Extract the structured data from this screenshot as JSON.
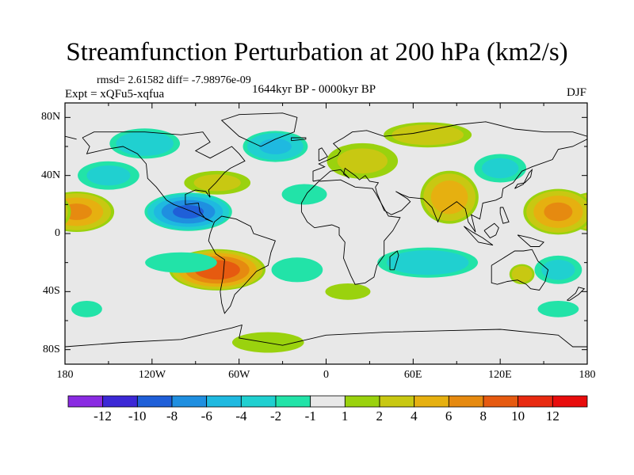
{
  "chart_data": {
    "type": "heatmap",
    "title": "Streamfunction Perturbation at 200 hPa (km2/s)",
    "stats": "rmsd= 2.61582 diff= -7.98976e-09",
    "experiment": "Expt = xQFu5-xqfua",
    "period": "1644kyr BP - 0000kyr BP",
    "season": "DJF",
    "x_ticks": [
      "180",
      "120W",
      "60W",
      "0",
      "60E",
      "120E",
      "180"
    ],
    "x_tick_values": [
      -180,
      -120,
      -60,
      0,
      60,
      120,
      180
    ],
    "y_ticks": [
      "80N",
      "40N",
      "0",
      "40S",
      "80S"
    ],
    "y_tick_values": [
      80,
      40,
      0,
      -40,
      -80
    ],
    "xlim": [
      -180,
      180
    ],
    "ylim": [
      -90,
      90
    ],
    "colorbar": {
      "levels": [
        "-12",
        "-10",
        "-8",
        "-6",
        "-4",
        "-2",
        "-1",
        "1",
        "2",
        "4",
        "6",
        "8",
        "10",
        "12"
      ],
      "colors": [
        "#8a2be2",
        "#3c28d6",
        "#1f5fd8",
        "#1f8fe0",
        "#1fb9e0",
        "#20d0d0",
        "#22e3a8",
        "#e8e8e8",
        "#9ad20e",
        "#c8c812",
        "#e6b010",
        "#e68a10",
        "#e65a10",
        "#e82a10",
        "#e80c0c"
      ]
    },
    "anomalies": [
      {
        "lon": -172,
        "lat": 15,
        "rlon": 28,
        "rlat": 15,
        "value": 7
      },
      {
        "lon": -150,
        "lat": 40,
        "rlon": 26,
        "rlat": 12,
        "value": -3
      },
      {
        "lon": -95,
        "lat": 15,
        "rlon": 32,
        "rlat": 14,
        "value": -9
      },
      {
        "lon": -75,
        "lat": -25,
        "rlon": 35,
        "rlat": 15,
        "value": 10
      },
      {
        "lon": -75,
        "lat": 35,
        "rlon": 28,
        "rlat": 10,
        "value": 3
      },
      {
        "lon": -125,
        "lat": 62,
        "rlon": 28,
        "rlat": 12,
        "value": -4
      },
      {
        "lon": -35,
        "lat": 60,
        "rlon": 25,
        "rlat": 12,
        "value": -5
      },
      {
        "lon": -15,
        "lat": 27,
        "rlon": 22,
        "rlat": 10,
        "value": -2
      },
      {
        "lon": 25,
        "lat": 50,
        "rlon": 30,
        "rlat": 15,
        "value": 3
      },
      {
        "lon": 70,
        "lat": 68,
        "rlon": 35,
        "rlat": 10,
        "value": 4
      },
      {
        "lon": 85,
        "lat": 25,
        "rlon": 22,
        "rlat": 20,
        "value": 6
      },
      {
        "lon": 160,
        "lat": 15,
        "rlon": 26,
        "rlat": 17,
        "value": 7
      },
      {
        "lon": 120,
        "lat": 45,
        "rlon": 22,
        "rlat": 12,
        "value": -3
      },
      {
        "lon": 70,
        "lat": -20,
        "rlon": 40,
        "rlat": 12,
        "value": -4
      },
      {
        "lon": -20,
        "lat": -25,
        "rlon": 25,
        "rlat": 12,
        "value": -2
      },
      {
        "lon": -100,
        "lat": -20,
        "rlon": 35,
        "rlat": 10,
        "value": -2
      },
      {
        "lon": 160,
        "lat": -25,
        "rlon": 20,
        "rlat": 12,
        "value": -3
      },
      {
        "lon": 15,
        "lat": -40,
        "rlon": 22,
        "rlat": 8,
        "value": 2
      },
      {
        "lon": -40,
        "lat": -75,
        "rlon": 35,
        "rlat": 10,
        "value": 2
      },
      {
        "lon": -165,
        "lat": -52,
        "rlon": 15,
        "rlat": 8,
        "value": -2
      },
      {
        "lon": 160,
        "lat": -52,
        "rlon": 20,
        "rlat": 8,
        "value": -2
      },
      {
        "lon": 135,
        "lat": -28,
        "rlon": 10,
        "rlat": 8,
        "value": 4
      }
    ]
  }
}
